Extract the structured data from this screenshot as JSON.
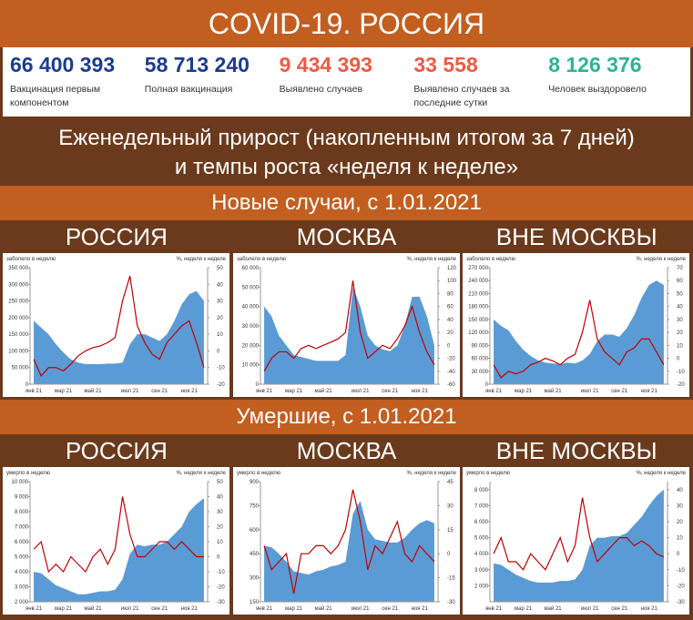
{
  "header": {
    "title": "COVID-19. РОССИЯ"
  },
  "stats": [
    {
      "value": "66 400 393",
      "label": "Вакцинация первым компонентом",
      "color": "#1b3c8f"
    },
    {
      "value": "58 713 240",
      "label": "Полная вакцинация",
      "color": "#1b3c8f"
    },
    {
      "value": "9 434 393",
      "label": "Выявлено случаев",
      "color": "#ee5a45"
    },
    {
      "value": "33 558",
      "label": "Выявлено случаев за последние сутки",
      "color": "#ee5a45"
    },
    {
      "value": "8 126 376",
      "label": "Человек выздоровело",
      "color": "#2bb592"
    }
  ],
  "subtitle": "Еженедельный прирост (накопленным итогом за 7 дней) и темпы роста «неделя к неделе»",
  "sections": [
    "Новые случаи, с 1.01.2021",
    "Умершие, с 1.01.2021"
  ],
  "chart_data": [
    {
      "type": "combo",
      "title": "РОССИЯ",
      "ylabel": "заболело в неделю",
      "y2label": "%, неделя к неделе",
      "categories": [
        "янв 21",
        null,
        null,
        null,
        "мар 21",
        null,
        null,
        null,
        "май 21",
        null,
        null,
        null,
        null,
        "июл 21",
        null,
        null,
        null,
        "сен 21",
        null,
        null,
        null,
        "ноя 21",
        null,
        null
      ],
      "series": [
        {
          "type": "area",
          "color": "#5b9bd5",
          "values": [
            190000,
            170000,
            150000,
            120000,
            95000,
            75000,
            65000,
            60000,
            60000,
            60000,
            62000,
            62000,
            65000,
            120000,
            150000,
            150000,
            140000,
            130000,
            150000,
            190000,
            240000,
            270000,
            280000,
            250000
          ]
        },
        {
          "type": "line",
          "color": "#c00000",
          "axis": "y2",
          "values": [
            -5,
            -15,
            -10,
            -10,
            -12,
            -8,
            -3,
            0,
            2,
            3,
            5,
            8,
            30,
            45,
            15,
            5,
            -2,
            -5,
            5,
            10,
            15,
            18,
            5,
            -10
          ]
        }
      ],
      "ylim": [
        0,
        350000
      ],
      "yticks": [
        0,
        {
          "value": 50000,
          "label": "50 000"
        },
        {
          "value": 100000,
          "label": "100 000"
        },
        {
          "value": 150000,
          "label": "150 000"
        },
        {
          "value": 200000,
          "label": "200 000"
        },
        {
          "value": 250000,
          "label": "250 000"
        },
        {
          "value": 300000,
          "label": "300 000"
        },
        {
          "value": 350000,
          "label": "350 000"
        }
      ],
      "y2lim": [
        -20,
        50
      ],
      "y2ticks": [
        -20,
        -10,
        0,
        10,
        20,
        30,
        40,
        50
      ]
    },
    {
      "type": "combo",
      "title": "МОСКВА",
      "ylabel": "заболело в неделю",
      "y2label": "%, неделя к неделе",
      "categories": [
        "янв 21",
        null,
        null,
        null,
        "мар 21",
        null,
        null,
        null,
        "май 21",
        null,
        null,
        null,
        null,
        "июл 21",
        null,
        null,
        null,
        "сен 21",
        null,
        null,
        null,
        "ноя 21",
        null,
        null
      ],
      "series": [
        {
          "type": "area",
          "color": "#5b9bd5",
          "values": [
            40000,
            35000,
            25000,
            20000,
            15000,
            14000,
            13000,
            12000,
            12000,
            12000,
            12000,
            15000,
            50000,
            40000,
            25000,
            20000,
            18000,
            17000,
            20000,
            30000,
            45000,
            45000,
            35000,
            20000
          ]
        },
        {
          "type": "line",
          "color": "#c00000",
          "axis": "y2",
          "values": [
            -40,
            -20,
            -10,
            -10,
            -20,
            -5,
            0,
            -5,
            0,
            5,
            10,
            20,
            100,
            20,
            -20,
            -10,
            0,
            -5,
            10,
            30,
            60,
            20,
            -10,
            -30
          ]
        }
      ],
      "ylim": [
        0,
        60000
      ],
      "yticks": [
        0,
        {
          "value": 10000,
          "label": "10 000"
        },
        {
          "value": 20000,
          "label": "20 000"
        },
        {
          "value": 30000,
          "label": "30 000"
        },
        {
          "value": 40000,
          "label": "40 000"
        },
        {
          "value": 50000,
          "label": "50 000"
        },
        {
          "value": 60000,
          "label": "60 000"
        }
      ],
      "y2lim": [
        -60,
        120
      ],
      "y2ticks": [
        -60,
        -40,
        -20,
        0,
        20,
        40,
        60,
        80,
        100,
        120
      ]
    },
    {
      "type": "combo",
      "title": "ВНЕ МОСКВЫ",
      "ylabel": "заболело в неделю",
      "y2label": "%, неделя к неделе",
      "categories": [
        "янв 21",
        null,
        null,
        null,
        "мар 21",
        null,
        null,
        null,
        "май 21",
        null,
        null,
        null,
        null,
        "июл 21",
        null,
        null,
        null,
        "сен 21",
        null,
        null,
        null,
        "ноя 21",
        null,
        null
      ],
      "series": [
        {
          "type": "area",
          "color": "#5b9bd5",
          "values": [
            150000,
            135000,
            125000,
            100000,
            80000,
            65000,
            55000,
            50000,
            48000,
            47000,
            50000,
            48000,
            55000,
            70000,
            100000,
            115000,
            115000,
            110000,
            130000,
            160000,
            200000,
            230000,
            240000,
            230000
          ]
        },
        {
          "type": "line",
          "color": "#c00000",
          "axis": "y2",
          "values": [
            -5,
            -15,
            -10,
            -12,
            -10,
            -5,
            -3,
            0,
            -2,
            -5,
            0,
            3,
            20,
            45,
            15,
            5,
            0,
            -5,
            5,
            8,
            15,
            15,
            5,
            -5
          ]
        }
      ],
      "ylim": [
        0,
        270000
      ],
      "yticks": [
        0,
        {
          "value": 30000,
          "label": "30 000"
        },
        {
          "value": 60000,
          "label": "60 000"
        },
        {
          "value": 90000,
          "label": "90 000"
        },
        {
          "value": 120000,
          "label": "120 000"
        },
        {
          "value": 150000,
          "label": "150 000"
        },
        {
          "value": 180000,
          "label": "180 000"
        },
        {
          "value": 210000,
          "label": "210 000"
        },
        {
          "value": 240000,
          "label": "240 000"
        },
        {
          "value": 270000,
          "label": "270 000"
        }
      ],
      "y2lim": [
        -20,
        70
      ],
      "y2ticks": [
        -20,
        -10,
        0,
        10,
        20,
        30,
        40,
        50,
        60,
        70
      ]
    },
    {
      "type": "combo",
      "title": "РОССИЯ",
      "ylabel": "умерло в неделю",
      "y2label": "%, неделя к неделе",
      "categories": [
        "янв 21",
        null,
        null,
        null,
        "мар 21",
        null,
        null,
        null,
        "май 21",
        null,
        null,
        null,
        null,
        "июл 21",
        null,
        null,
        null,
        "сен 21",
        null,
        null,
        null,
        "ноя 21",
        null,
        null
      ],
      "series": [
        {
          "type": "area",
          "color": "#5b9bd5",
          "values": [
            4000,
            3900,
            3500,
            3100,
            2900,
            2700,
            2500,
            2500,
            2600,
            2700,
            2700,
            2800,
            3500,
            5200,
            5800,
            5700,
            5800,
            5800,
            6000,
            6500,
            7000,
            8000,
            8500,
            8900
          ]
        },
        {
          "type": "line",
          "color": "#c00000",
          "axis": "y2",
          "values": [
            5,
            10,
            -10,
            -5,
            -10,
            0,
            -5,
            -10,
            0,
            5,
            -5,
            5,
            40,
            15,
            0,
            0,
            5,
            10,
            10,
            5,
            10,
            5,
            0,
            0
          ]
        }
      ],
      "ylim": [
        2000,
        10000
      ],
      "yticks": [
        {
          "value": 2000,
          "label": "2 000"
        },
        {
          "value": 3000,
          "label": "3 000"
        },
        {
          "value": 4000,
          "label": "4 000"
        },
        {
          "value": 5000,
          "label": "5 000"
        },
        {
          "value": 6000,
          "label": "6 000"
        },
        {
          "value": 7000,
          "label": "7 000"
        },
        {
          "value": 8000,
          "label": "8 000"
        },
        {
          "value": 9000,
          "label": "9 000"
        },
        {
          "value": 10000,
          "label": "10 000"
        }
      ],
      "y2lim": [
        -30,
        50
      ],
      "y2ticks": [
        -30,
        -20,
        -10,
        0,
        10,
        20,
        30,
        40,
        50
      ]
    },
    {
      "type": "combo",
      "title": "МОСКВА",
      "ylabel": "умерло в неделю",
      "y2label": "%, неделя к неделе",
      "categories": [
        "янв 21",
        null,
        null,
        null,
        "мар 21",
        null,
        null,
        null,
        "май 21",
        null,
        null,
        null,
        null,
        "июл 21",
        null,
        null,
        null,
        "сен 21",
        null,
        null,
        null,
        "ноя 21",
        null,
        null
      ],
      "series": [
        {
          "type": "area",
          "color": "#5b9bd5",
          "values": [
            500,
            490,
            450,
            400,
            340,
            330,
            320,
            340,
            350,
            370,
            380,
            400,
            700,
            780,
            600,
            540,
            530,
            520,
            520,
            550,
            600,
            640,
            660,
            640
          ]
        },
        {
          "type": "line",
          "color": "#c00000",
          "axis": "y2",
          "values": [
            5,
            -10,
            -5,
            0,
            -25,
            0,
            0,
            5,
            5,
            0,
            5,
            15,
            40,
            20,
            -10,
            5,
            0,
            10,
            20,
            0,
            -5,
            5,
            0,
            -5
          ]
        }
      ],
      "ylim": [
        150,
        900
      ],
      "yticks": [
        150,
        300,
        450,
        600,
        750,
        900
      ],
      "y2lim": [
        -30,
        45
      ],
      "y2ticks": [
        -30,
        -15,
        0,
        15,
        30,
        45
      ]
    },
    {
      "type": "combo",
      "title": "ВНЕ МОСКВЫ",
      "ylabel": "умерло в неделю",
      "y2label": "%, неделя к неделе",
      "categories": [
        "янв 21",
        null,
        null,
        null,
        "мар 21",
        null,
        null,
        null,
        "май 21",
        null,
        null,
        null,
        null,
        "июл 21",
        null,
        null,
        null,
        "сен 21",
        null,
        null,
        null,
        "ноя 21",
        null,
        null
      ],
      "series": [
        {
          "type": "area",
          "color": "#5b9bd5",
          "values": [
            3400,
            3300,
            3000,
            2700,
            2500,
            2300,
            2200,
            2200,
            2200,
            2300,
            2300,
            2400,
            3000,
            4500,
            5000,
            5000,
            5100,
            5100,
            5300,
            5800,
            6300,
            7000,
            7600,
            8000
          ]
        },
        {
          "type": "line",
          "color": "#c00000",
          "axis": "y2",
          "values": [
            0,
            10,
            -5,
            -5,
            -10,
            0,
            -5,
            -10,
            0,
            10,
            -5,
            5,
            35,
            10,
            -5,
            0,
            5,
            10,
            10,
            5,
            8,
            5,
            0,
            -2
          ]
        }
      ],
      "ylim": [
        1000,
        8500
      ],
      "yticks": [
        {
          "value": 2000,
          "label": "2 000"
        },
        {
          "value": 3000,
          "label": "3 000"
        },
        {
          "value": 4000,
          "label": "4 000"
        },
        {
          "value": 5000,
          "label": "5 000"
        },
        {
          "value": 6000,
          "label": "6 000"
        },
        {
          "value": 7000,
          "label": "7 000"
        },
        {
          "value": 8000,
          "label": "8 000"
        }
      ],
      "y2lim": [
        -30,
        45
      ],
      "y2ticks": [
        -30,
        -20,
        -10,
        0,
        10,
        20,
        30,
        40
      ]
    }
  ]
}
